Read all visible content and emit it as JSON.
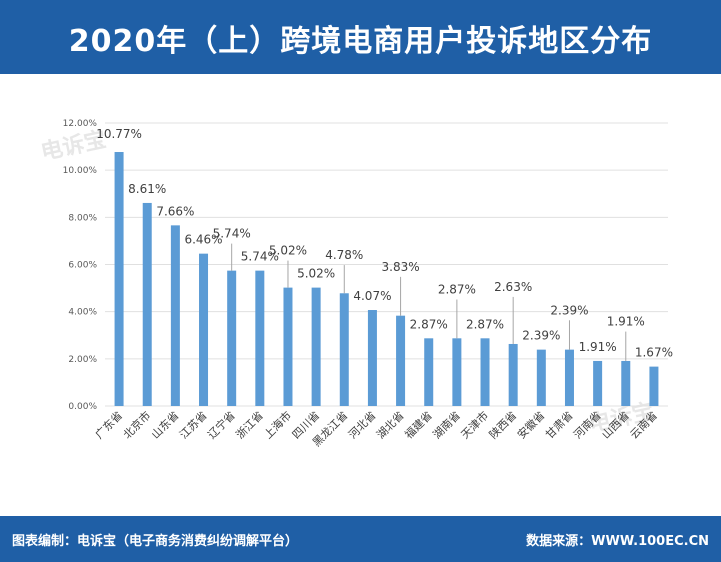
{
  "header": {
    "title": "2020年（上）跨境电商用户投诉地区分布"
  },
  "footer": {
    "left": "图表编制：电诉宝（电子商务消费纠纷调解平台）",
    "right": "数据来源：WWW.100EC.CN"
  },
  "watermark": {
    "text": "电诉宝"
  },
  "colors": {
    "header": "#1f5fa6",
    "bar": "#5b9bd5",
    "grid": "#e0e0e0"
  },
  "chart_data": {
    "type": "bar",
    "categories": [
      "广东省",
      "北京市",
      "山东省",
      "江苏省",
      "辽宁省",
      "浙江省",
      "上海市",
      "四川省",
      "黑龙江省",
      "河北省",
      "湖北省",
      "福建省",
      "湖南省",
      "天津市",
      "陕西省",
      "安徽省",
      "甘肃省",
      "河南省",
      "山西省",
      "云南省"
    ],
    "values": [
      10.77,
      8.61,
      7.66,
      6.46,
      5.74,
      5.74,
      5.02,
      5.02,
      4.78,
      4.07,
      3.83,
      2.87,
      2.87,
      2.87,
      2.63,
      2.39,
      2.39,
      1.91,
      1.91,
      1.67
    ],
    "labels": [
      "10.77%",
      "8.61%",
      "7.66%",
      "6.46%",
      "5.74%",
      "5.74%",
      "5.02%",
      "5.02%",
      "4.78%",
      "4.07%",
      "3.83%",
      "2.87%",
      "2.87%",
      "2.87%",
      "2.63%",
      "2.39%",
      "2.39%",
      "1.91%",
      "1.91%",
      "1.67%"
    ],
    "y_ticks": [
      "0.00%",
      "2.00%",
      "4.00%",
      "6.00%",
      "8.00%",
      "10.00%",
      "12.00%"
    ],
    "ylim": [
      0,
      12
    ],
    "grid": true
  }
}
